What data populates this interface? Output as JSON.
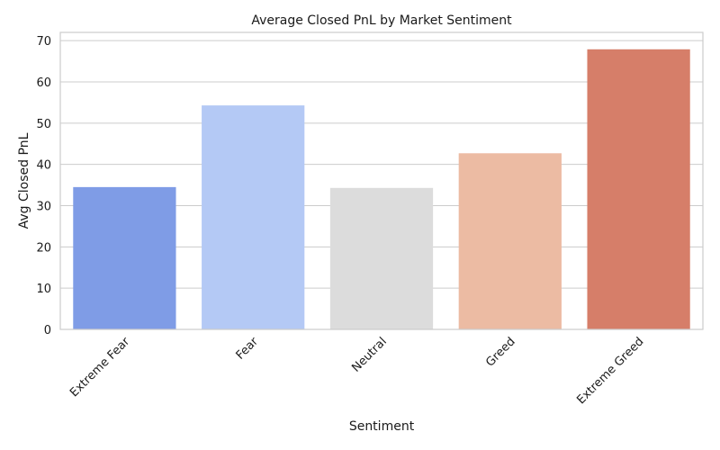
{
  "chart_data": {
    "type": "bar",
    "title": "Average Closed PnL by Market Sentiment",
    "xlabel": "Sentiment",
    "ylabel": "Avg Closed PnL",
    "categories": [
      "Extreme Fear",
      "Fear",
      "Neutral",
      "Greed",
      "Extreme Greed"
    ],
    "values": [
      34.5,
      54.3,
      34.3,
      42.7,
      67.9
    ],
    "colors": [
      "#7f9ce6",
      "#b4c9f5",
      "#dcdcdc",
      "#ecbba3",
      "#d67e69"
    ],
    "ylim": [
      0,
      72
    ],
    "yticks": [
      0,
      10,
      20,
      30,
      40,
      50,
      60,
      70
    ],
    "grid": true,
    "x_tick_rotation_deg": 45
  }
}
